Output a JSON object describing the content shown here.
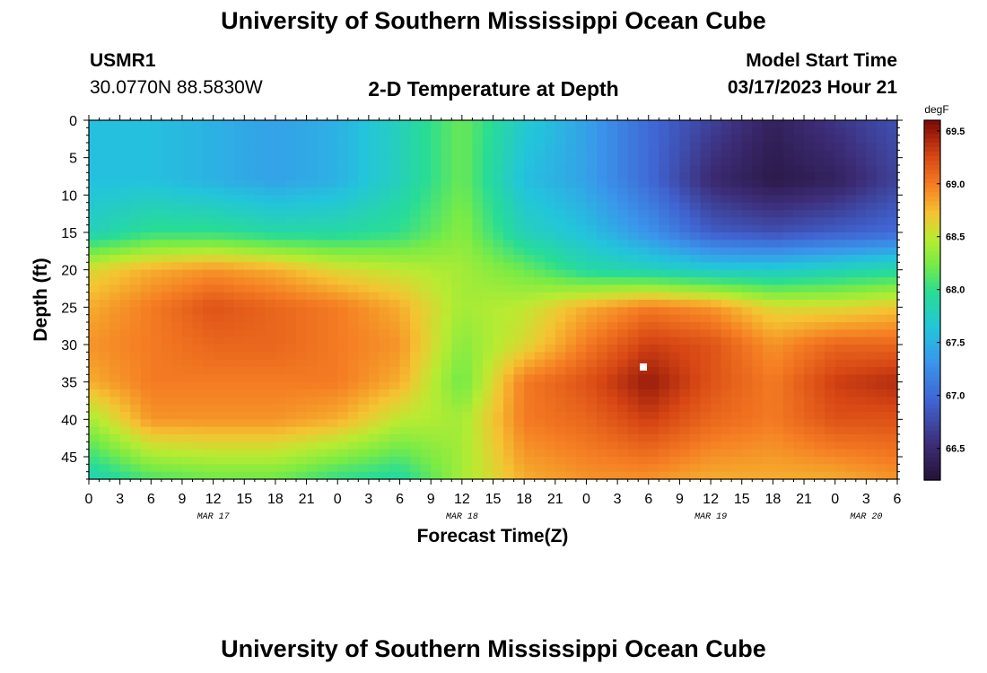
{
  "header": {
    "title": "University of Southern Mississippi Ocean Cube",
    "station_id": "USMR1",
    "coordinates": "30.0770N  88.5830W",
    "model_start_label": "Model Start Time",
    "model_start_value": "03/17/2023 Hour 21"
  },
  "footer": {
    "title": "University of Southern Mississippi Ocean Cube"
  },
  "colors": {
    "text": "#000000",
    "marker": "#ffffff"
  },
  "chart_data": {
    "type": "heatmap",
    "title": "2-D Temperature at Depth",
    "xlabel": "Forecast Time(Z)",
    "ylabel": "Depth (ft)",
    "x_ticks": [
      "0",
      "3",
      "6",
      "9",
      "12",
      "15",
      "18",
      "21",
      "0",
      "3",
      "6",
      "9",
      "12",
      "15",
      "18",
      "21",
      "0",
      "3",
      "6",
      "9",
      "12",
      "15",
      "18",
      "21",
      "0",
      "3",
      "6"
    ],
    "x_range_hours": [
      0,
      78
    ],
    "date_labels": [
      {
        "label": "MAR 17",
        "hour": 12
      },
      {
        "label": "MAR 18",
        "hour": 36
      },
      {
        "label": "MAR 19",
        "hour": 60
      },
      {
        "label": "MAR 20",
        "hour": 75
      }
    ],
    "y_ticks": [
      0,
      5,
      10,
      15,
      20,
      25,
      30,
      35,
      40,
      45
    ],
    "y_range_ft": [
      0,
      48
    ],
    "colorbar": {
      "unit": "degF",
      "range": [
        66.2,
        69.6
      ],
      "ticks": [
        "69.5",
        "69.0",
        "68.5",
        "68.0",
        "67.5",
        "67.0",
        "66.5"
      ]
    },
    "field_anchors": {
      "hours": [
        0,
        6,
        12,
        18,
        24,
        30,
        36,
        42,
        48,
        54,
        60,
        66,
        72,
        78
      ],
      "depths_ft": [
        0,
        8,
        15,
        20,
        25,
        30,
        35,
        40,
        48
      ],
      "temps_degF": [
        [
          67.6,
          67.6,
          67.5,
          67.4,
          67.5,
          67.8,
          68.2,
          67.7,
          67.4,
          67.0,
          66.7,
          66.4,
          66.6,
          66.8
        ],
        [
          67.6,
          67.6,
          67.5,
          67.4,
          67.5,
          67.8,
          68.2,
          67.6,
          67.4,
          67.0,
          66.5,
          66.3,
          66.4,
          66.7
        ],
        [
          67.8,
          68.0,
          68.0,
          67.9,
          67.9,
          68.0,
          68.3,
          67.8,
          67.6,
          67.3,
          66.9,
          66.8,
          66.9,
          67.0
        ],
        [
          68.6,
          68.8,
          68.9,
          68.8,
          68.6,
          68.5,
          68.4,
          68.2,
          67.9,
          67.8,
          67.7,
          67.7,
          67.8,
          67.9
        ],
        [
          68.8,
          69.0,
          69.2,
          69.1,
          69.0,
          68.8,
          68.4,
          68.5,
          68.8,
          69.0,
          68.9,
          68.6,
          68.6,
          68.7
        ],
        [
          68.9,
          69.0,
          69.1,
          69.1,
          69.0,
          68.9,
          68.3,
          68.6,
          69.0,
          69.3,
          69.2,
          68.9,
          69.1,
          69.1
        ],
        [
          68.8,
          69.0,
          69.0,
          69.0,
          69.0,
          68.8,
          68.2,
          69.0,
          69.2,
          69.5,
          69.2,
          69.0,
          69.3,
          69.4
        ],
        [
          68.4,
          68.9,
          68.9,
          68.9,
          68.8,
          68.5,
          68.4,
          69.0,
          69.1,
          69.3,
          69.1,
          69.0,
          69.2,
          69.2
        ],
        [
          67.8,
          68.1,
          68.2,
          68.2,
          68.0,
          67.9,
          68.4,
          68.8,
          68.9,
          68.9,
          68.8,
          68.8,
          68.8,
          68.9
        ]
      ]
    },
    "marker": {
      "hour": 53.5,
      "depth_ft": 33
    }
  }
}
